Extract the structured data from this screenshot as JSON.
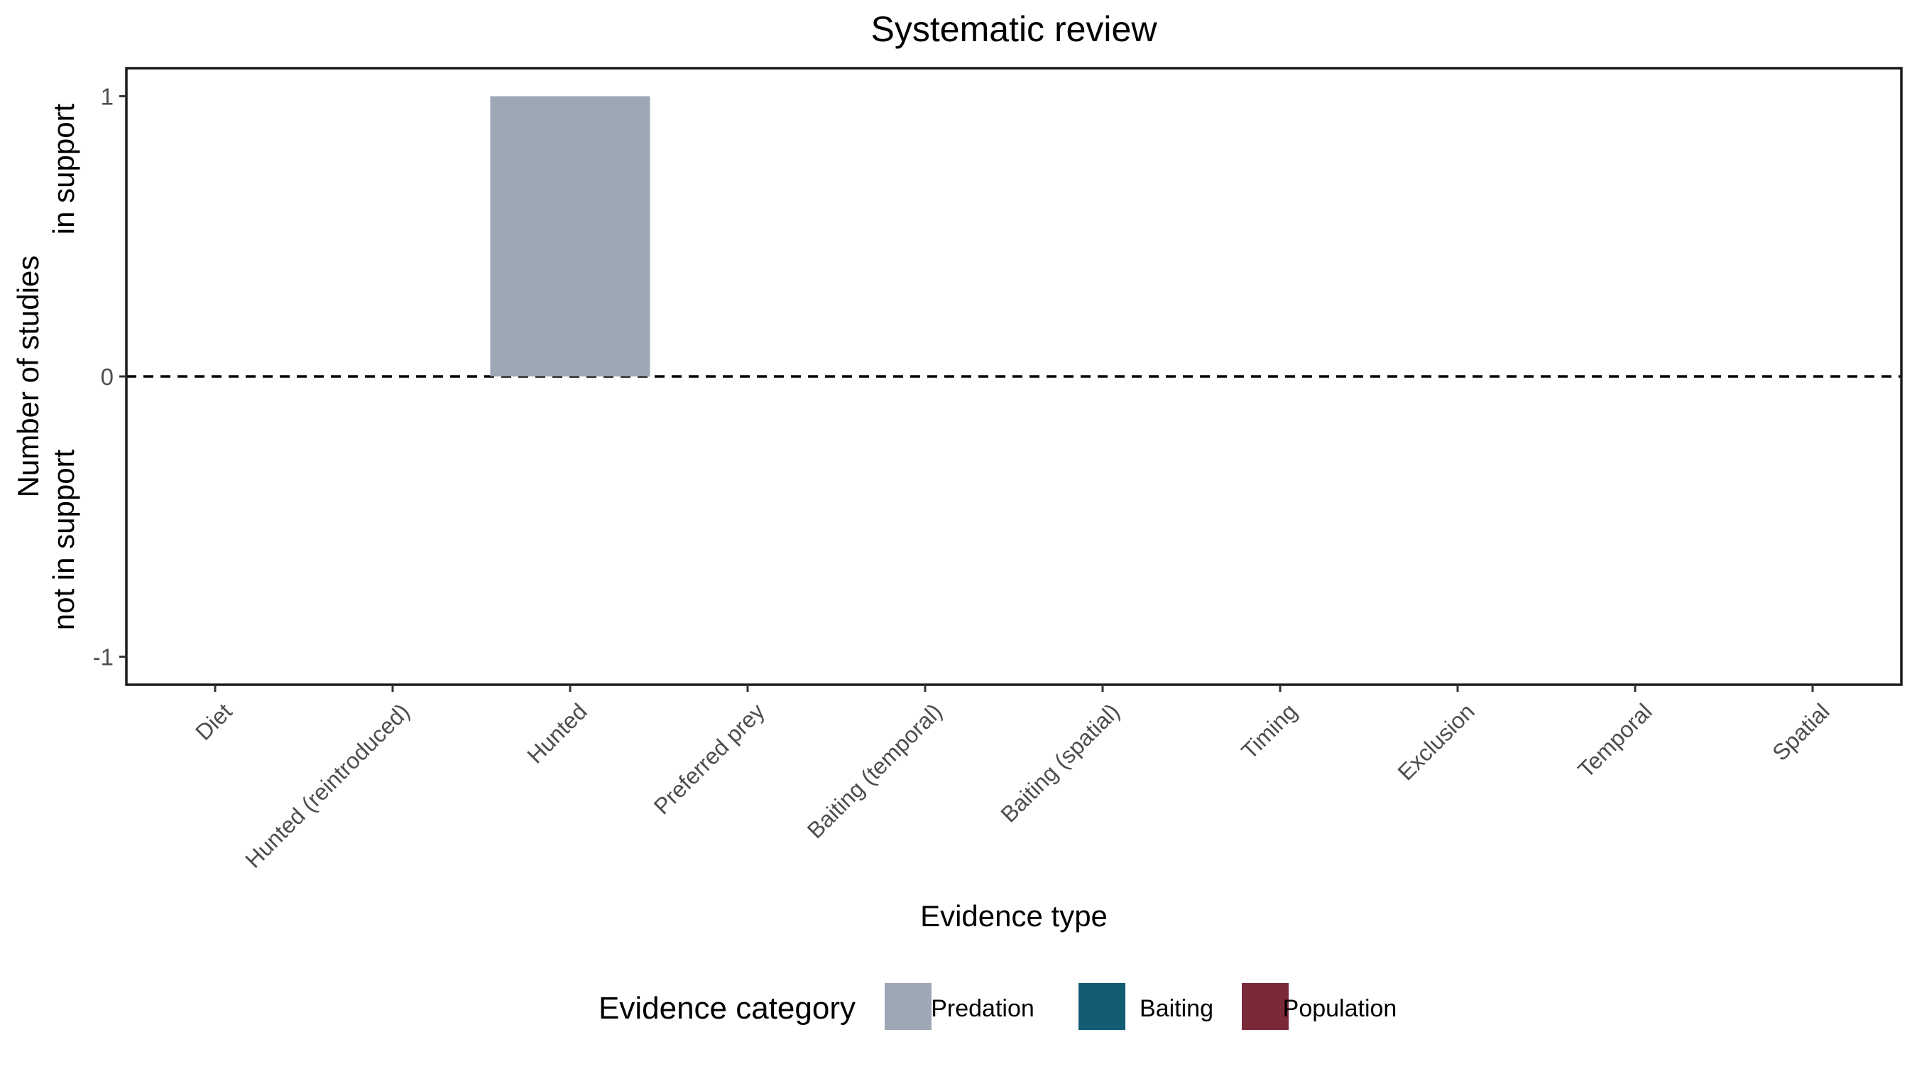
{
  "chart_data": {
    "type": "bar",
    "title": "Systematic review",
    "xlabel": "Evidence type",
    "ylabel_lines": [
      "Number of studies",
      "in support",
      "not in support"
    ],
    "categories": [
      "Diet",
      "Hunted (reintroduced)",
      "Hunted",
      "Preferred prey",
      "Baiting (temporal)",
      "Baiting (spatial)",
      "Timing",
      "Exclusion",
      "Temporal",
      "Spatial"
    ],
    "series": [
      {
        "name": "Predation",
        "color": "#9ea7b5",
        "values": [
          0,
          0,
          1,
          0,
          0,
          0,
          0,
          0,
          0,
          0
        ]
      },
      {
        "name": "Baiting",
        "color": "#145c74",
        "values": [
          0,
          0,
          0,
          0,
          0,
          0,
          0,
          0,
          0,
          0
        ]
      },
      {
        "name": "Population",
        "color": "#7b2838",
        "values": [
          0,
          0,
          0,
          0,
          0,
          0,
          0,
          0,
          0,
          0
        ]
      }
    ],
    "yticks": [
      -1,
      0,
      1
    ],
    "ylim": [
      -1.1,
      1.1
    ],
    "reference_line": {
      "y": 0,
      "style": "dashed"
    },
    "grid": false,
    "legend": {
      "title": "Evidence category",
      "position": "bottom",
      "items": [
        "Predation",
        "Baiting",
        "Population"
      ]
    }
  }
}
